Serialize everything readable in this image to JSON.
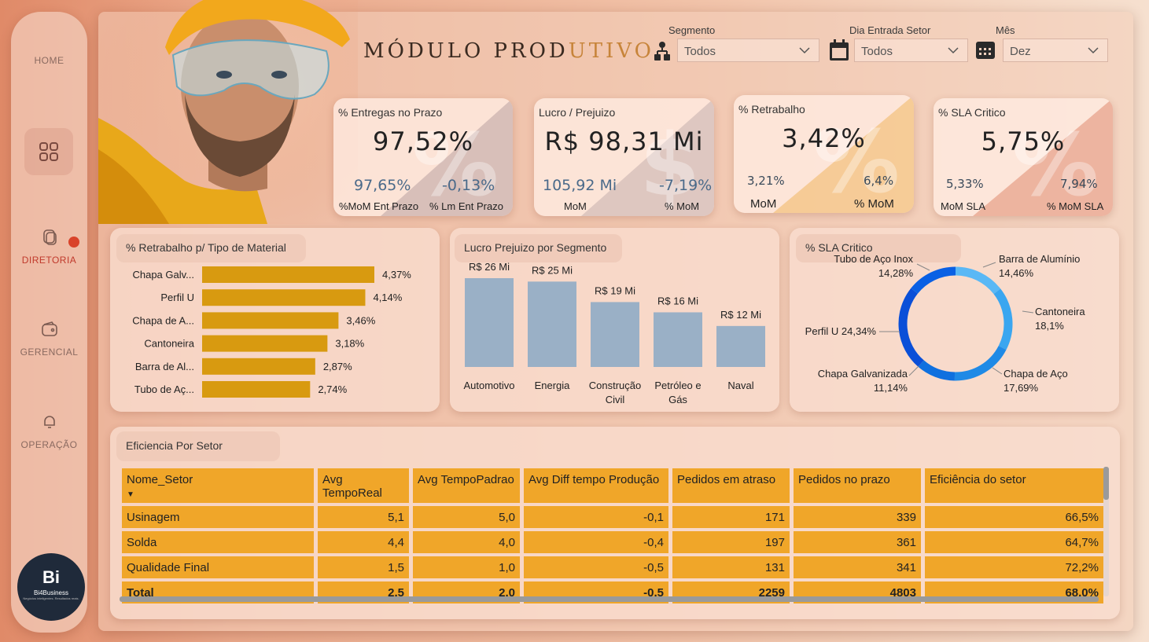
{
  "sidebar": {
    "home": "HOME",
    "diretoria": "DIRETORIA",
    "gerencial": "GERENCIAL",
    "operacao": "OPERAÇÃO",
    "logo_big": "Bi",
    "logo_name": "Bi4Business",
    "logo_tag": "Negócios inteligentes. Resultados reais."
  },
  "header": {
    "title_main": "MÓDULO PROD",
    "title_accent": "UTIVO"
  },
  "filters": {
    "segmento": {
      "label": "Segmento",
      "value": "Todos"
    },
    "dia": {
      "label": "Dia Entrada Setor",
      "value": "Todos"
    },
    "mes": {
      "label": "Mês",
      "value": "Dez"
    }
  },
  "kpis": {
    "entregas": {
      "title": "% Entregas no Prazo",
      "value": "97,52%",
      "sub1": "97,65%",
      "sub2": "-0,13%",
      "lbl1": "%MoM Ent Prazo",
      "lbl2": "% Lm Ent Prazo"
    },
    "lucro": {
      "title": "Lucro /  Prejuizo",
      "value": "R$ 98,31 Mi",
      "sub1": "105,92 Mi",
      "sub2": "-7,19%",
      "lbl1": "MoM",
      "lbl2": "% MoM"
    },
    "retrabalho": {
      "title": "% Retrabalho",
      "value": "3,42%",
      "sub1": "3,21%",
      "sub2": "6,4%",
      "lbl1": "MoM",
      "lbl2": "% MoM"
    },
    "sla": {
      "title": "% SLA Critico",
      "value": "5,75%",
      "sub1": "5,33%",
      "sub2": "7,94%",
      "lbl1": "MoM SLA",
      "lbl2": "% MoM SLA"
    }
  },
  "colors": {
    "bar_orange": "#d89a10",
    "bar_blue": "#9ab0c6",
    "table_orange": "#f0a629",
    "donut_dark": "#0a4fd8",
    "donut_light": "#5ab8f5"
  },
  "chart_data": [
    {
      "type": "bar",
      "orientation": "horizontal",
      "title": "% Retrabalho p/ Tipo de Material",
      "categories": [
        "Chapa Galv...",
        "Perfil U",
        "Chapa de A...",
        "Cantoneira",
        "Barra de Al...",
        "Tubo de Aç..."
      ],
      "values": [
        4.37,
        4.14,
        3.46,
        3.18,
        2.87,
        2.74
      ],
      "labels": [
        "4,37%",
        "4,14%",
        "3,46%",
        "3,18%",
        "2,87%",
        "2,74%"
      ],
      "xlim": [
        0,
        4.37
      ]
    },
    {
      "type": "bar",
      "title": "Lucro Prejuizo por Segmento",
      "categories": [
        "Automotivo",
        "Energia",
        "Construção Civil",
        "Petróleo e Gás",
        "Naval"
      ],
      "values": [
        26,
        25,
        19,
        16,
        12
      ],
      "labels": [
        "R$ 26 Mi",
        "R$ 25 Mi",
        "R$ 19 Mi",
        "R$ 16 Mi",
        "R$ 12 Mi"
      ],
      "ylim": [
        0,
        26
      ]
    },
    {
      "type": "pie",
      "donut": true,
      "title": "% SLA Critico",
      "categories": [
        "Barra de Alumínio",
        "Cantoneira",
        "Chapa de Aço",
        "Chapa Galvanizada",
        "Perfil U",
        "Tubo de Aço Inox"
      ],
      "values": [
        14.46,
        18.1,
        17.69,
        11.14,
        24.34,
        14.28
      ],
      "labels": [
        "14,46%",
        "18,1%",
        "17,69%",
        "11,14%",
        "24,34%",
        "14,28%"
      ]
    }
  ],
  "table": {
    "title": "Eficiencia Por Setor",
    "columns": [
      "Nome_Setor",
      "Avg TempoReal",
      "Avg TempoPadrao",
      "Avg Diff tempo Produção",
      "Pedidos em atraso",
      "Pedidos no prazo",
      "Eficiência do setor"
    ],
    "rows": [
      [
        "Usinagem",
        "5,1",
        "5,0",
        "-0,1",
        "171",
        "339",
        "66,5%"
      ],
      [
        "Solda",
        "4,4",
        "4,0",
        "-0,4",
        "197",
        "361",
        "64,7%"
      ],
      [
        "Qualidade Final",
        "1,5",
        "1,0",
        "-0,5",
        "131",
        "341",
        "72,2%"
      ]
    ],
    "total": [
      "Total",
      "2,5",
      "2,0",
      "-0,5",
      "2259",
      "4803",
      "68,0%"
    ]
  }
}
